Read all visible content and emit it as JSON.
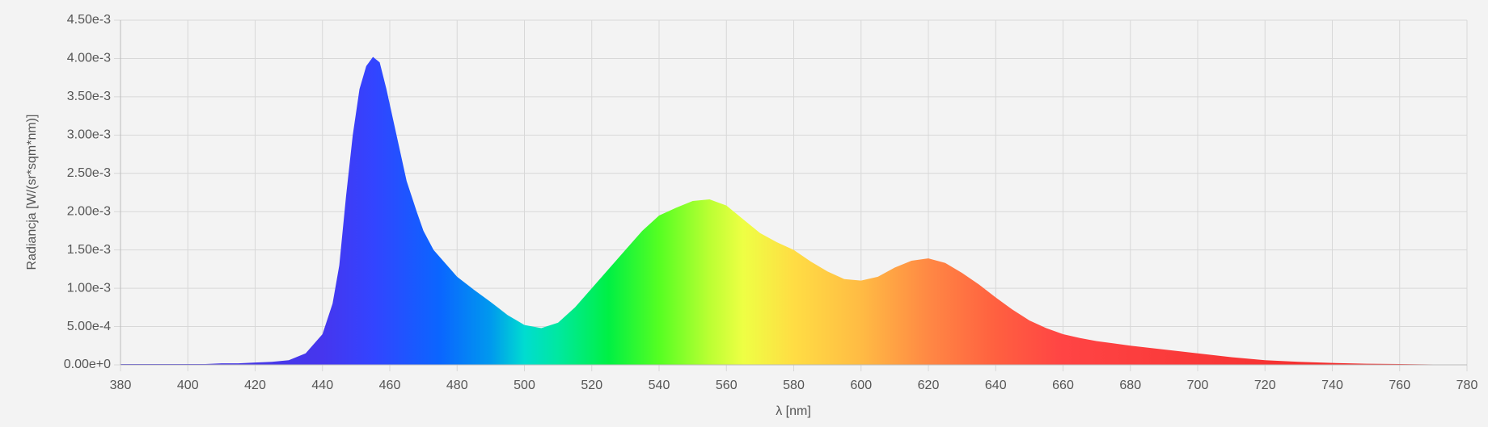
{
  "chart_data": {
    "type": "area",
    "x_label": "λ [nm]",
    "y_label": "Radiancja [W/(sr*sqm*nm)]",
    "x": [
      380,
      385,
      390,
      395,
      400,
      405,
      410,
      415,
      420,
      425,
      430,
      435,
      440,
      443,
      445,
      447,
      449,
      451,
      453,
      455,
      457,
      459,
      461,
      463,
      465,
      468,
      470,
      473,
      476,
      480,
      485,
      490,
      495,
      500,
      505,
      510,
      515,
      520,
      525,
      530,
      535,
      540,
      545,
      550,
      555,
      560,
      565,
      570,
      575,
      580,
      585,
      590,
      595,
      600,
      605,
      610,
      615,
      620,
      625,
      630,
      635,
      640,
      645,
      650,
      655,
      660,
      665,
      670,
      675,
      680,
      690,
      700,
      710,
      720,
      730,
      740,
      750,
      760,
      770,
      780
    ],
    "values": [
      1e-05,
      1e-05,
      1e-05,
      1e-05,
      1e-05,
      1e-05,
      2e-05,
      2e-05,
      3e-05,
      4e-05,
      6e-05,
      0.00015,
      0.0004,
      0.0008,
      0.0013,
      0.0022,
      0.003,
      0.0036,
      0.0039,
      0.00402,
      0.00395,
      0.0036,
      0.0032,
      0.0028,
      0.0024,
      0.002,
      0.00175,
      0.0015,
      0.00135,
      0.00115,
      0.00098,
      0.00082,
      0.00065,
      0.00052,
      0.00048,
      0.00055,
      0.00075,
      0.001,
      0.00125,
      0.0015,
      0.00175,
      0.00195,
      0.00205,
      0.00214,
      0.00216,
      0.00208,
      0.0019,
      0.00172,
      0.0016,
      0.0015,
      0.00135,
      0.00122,
      0.00112,
      0.0011,
      0.00115,
      0.00127,
      0.00136,
      0.00139,
      0.00133,
      0.0012,
      0.00105,
      0.00088,
      0.00072,
      0.00058,
      0.00048,
      0.0004,
      0.00035,
      0.00031,
      0.00028,
      0.00025,
      0.0002,
      0.00015,
      0.0001,
      6e-05,
      4e-05,
      2.5e-05,
      1.5e-05,
      1e-05,
      5e-06,
      3e-06
    ],
    "xlim": [
      380,
      780
    ],
    "xticks": [
      380,
      400,
      420,
      440,
      460,
      480,
      500,
      520,
      540,
      560,
      580,
      600,
      620,
      640,
      660,
      680,
      700,
      720,
      740,
      760,
      780
    ],
    "ylim": [
      0,
      0.0045
    ],
    "yticks": [
      {
        "value": 0,
        "label": "0.00e+0"
      },
      {
        "value": 0.0005,
        "label": "5.00e-4"
      },
      {
        "value": 0.001,
        "label": "1.00e-3"
      },
      {
        "value": 0.0015,
        "label": "1.50e-3"
      },
      {
        "value": 0.002,
        "label": "2.00e-3"
      },
      {
        "value": 0.0025,
        "label": "2.50e-3"
      },
      {
        "value": 0.003,
        "label": "3.00e-3"
      },
      {
        "value": 0.0035,
        "label": "3.50e-3"
      },
      {
        "value": 0.004,
        "label": "4.00e-3"
      },
      {
        "value": 0.0045,
        "label": "4.50e-3"
      }
    ],
    "grid": true
  }
}
